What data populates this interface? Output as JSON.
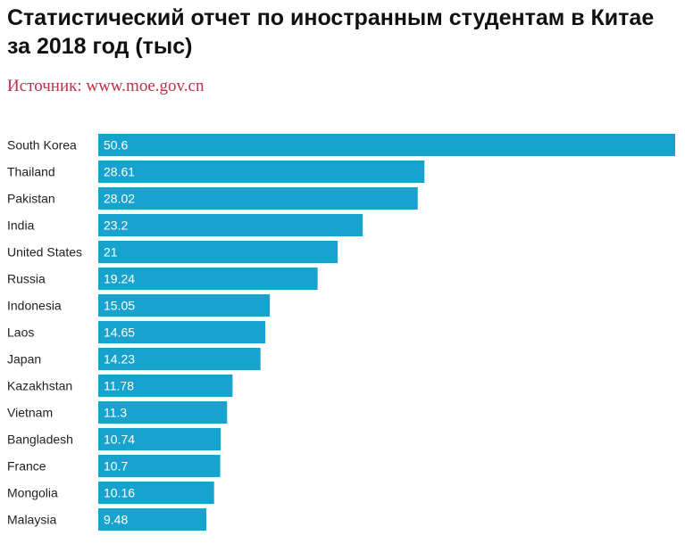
{
  "title": "Статистический отчет по иностранным студентам в Китае за 2018 год (тыс)",
  "source": "Источник: www.moe.gov.cn",
  "colors": {
    "bar": "#18a3cf",
    "source_text": "#c0304a",
    "title_text": "#111111"
  },
  "chart_data": {
    "type": "bar",
    "orientation": "horizontal",
    "categories": [
      "South Korea",
      "Thailand",
      "Pakistan",
      "India",
      "United States",
      "Russia",
      "Indonesia",
      "Laos",
      "Japan",
      "Kazakhstan",
      "Vietnam",
      "Bangladesh",
      "France",
      "Mongolia",
      "Malaysia"
    ],
    "values": [
      50.6,
      28.61,
      28.02,
      23.2,
      21,
      19.24,
      15.05,
      14.65,
      14.23,
      11.78,
      11.3,
      10.74,
      10.7,
      10.16,
      9.48
    ],
    "value_labels": [
      "50.6",
      "28.61",
      "28.02",
      "23.2",
      "21",
      "19.24",
      "15.05",
      "14.65",
      "14.23",
      "11.78",
      "11.3",
      "10.74",
      "10.7",
      "10.16",
      "9.48"
    ],
    "xlim": [
      0,
      50.6
    ],
    "grid": false,
    "legend": "none"
  }
}
